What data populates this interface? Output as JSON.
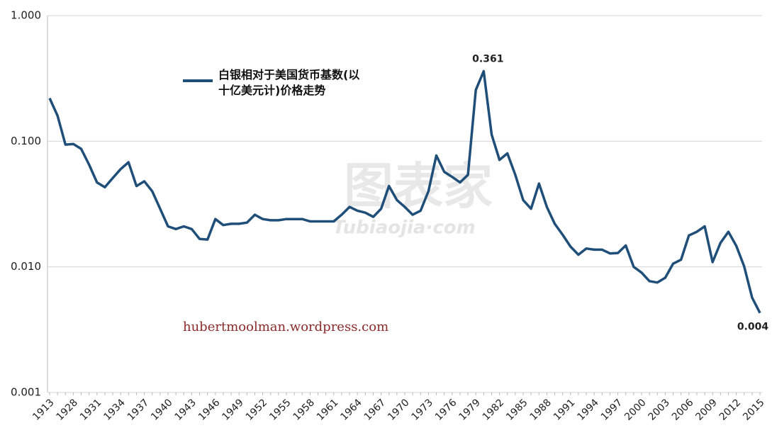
{
  "chart_data": {
    "type": "line",
    "log_scale": true,
    "grid": true,
    "categories": [
      "1913",
      null,
      null,
      "1928",
      null,
      null,
      "1931",
      null,
      null,
      "1934",
      null,
      null,
      "1937",
      null,
      null,
      "1940",
      null,
      null,
      "1943",
      null,
      null,
      "1946",
      null,
      null,
      "1949",
      null,
      null,
      "1952",
      null,
      null,
      "1955",
      null,
      null,
      "1958",
      null,
      null,
      "1961",
      null,
      null,
      "1964",
      null,
      null,
      "1967",
      null,
      null,
      "1970",
      null,
      null,
      "1973",
      null,
      null,
      "1976",
      null,
      null,
      "1979",
      null,
      null,
      "1982",
      null,
      null,
      "1985",
      null,
      null,
      "1988",
      null,
      null,
      "1991",
      null,
      null,
      "1994",
      null,
      null,
      "1997",
      null,
      null,
      "2000",
      null,
      null,
      "2003",
      null,
      null,
      "2006",
      null,
      null,
      "2009",
      null,
      null,
      "2012",
      null,
      null,
      "2015"
    ],
    "series": [
      {
        "name": "白银相对于美国货币基数(以十亿美元计)价格走势",
        "color": "#1f4e79",
        "values": [
          0.22,
          0.16,
          0.094,
          0.095,
          0.087,
          0.065,
          0.047,
          0.043,
          0.051,
          0.06,
          0.068,
          0.044,
          0.048,
          0.04,
          0.029,
          0.021,
          0.02,
          0.021,
          0.02,
          0.0167,
          0.0165,
          0.024,
          0.0215,
          0.022,
          0.022,
          0.0225,
          0.026,
          0.024,
          0.0235,
          0.0235,
          0.024,
          0.024,
          0.024,
          0.023,
          0.023,
          0.023,
          0.023,
          0.026,
          0.03,
          0.028,
          0.027,
          0.025,
          0.029,
          0.044,
          0.034,
          0.03,
          0.026,
          0.028,
          0.04,
          0.077,
          0.057,
          0.052,
          0.047,
          0.054,
          0.256,
          0.361,
          0.113,
          0.071,
          0.08,
          0.054,
          0.034,
          0.029,
          0.046,
          0.03,
          0.022,
          0.018,
          0.0145,
          0.0125,
          0.014,
          0.0137,
          0.0137,
          0.0128,
          0.0129,
          0.0148,
          0.01,
          0.009,
          0.0077,
          0.0075,
          0.0082,
          0.0106,
          0.0114,
          0.0178,
          0.019,
          0.021,
          0.0109,
          0.0155,
          0.019,
          0.0147,
          0.0101,
          0.0057,
          0.0043
        ],
        "value_labels": [
          null,
          null,
          null,
          null,
          null,
          null,
          null,
          null,
          null,
          null,
          null,
          null,
          null,
          null,
          null,
          null,
          null,
          null,
          null,
          null,
          null,
          null,
          null,
          null,
          null,
          null,
          null,
          null,
          null,
          null,
          null,
          null,
          null,
          null,
          null,
          null,
          null,
          null,
          null,
          null,
          null,
          null,
          null,
          null,
          null,
          null,
          null,
          null,
          null,
          null,
          null,
          null,
          null,
          null,
          null,
          "0.361",
          null,
          null,
          null,
          null,
          null,
          null,
          null,
          null,
          null,
          null,
          null,
          null,
          null,
          null,
          null,
          null,
          null,
          null,
          null,
          null,
          null,
          null,
          null,
          null,
          null,
          null,
          null,
          null,
          null,
          null,
          null,
          null,
          null,
          null,
          "0.004"
        ]
      }
    ],
    "ylim": [
      0.001,
      1
    ],
    "yticks": [
      {
        "value": 1,
        "label": "1.000"
      },
      {
        "value": 0.1,
        "label": "0.100"
      },
      {
        "value": 0.01,
        "label": "0.010"
      },
      {
        "value": 0.001,
        "label": "0.001"
      }
    ],
    "source": "hubertmoolman.wordpress.com",
    "watermarks": [
      "图表家",
      "Tubiaojia·com"
    ]
  }
}
